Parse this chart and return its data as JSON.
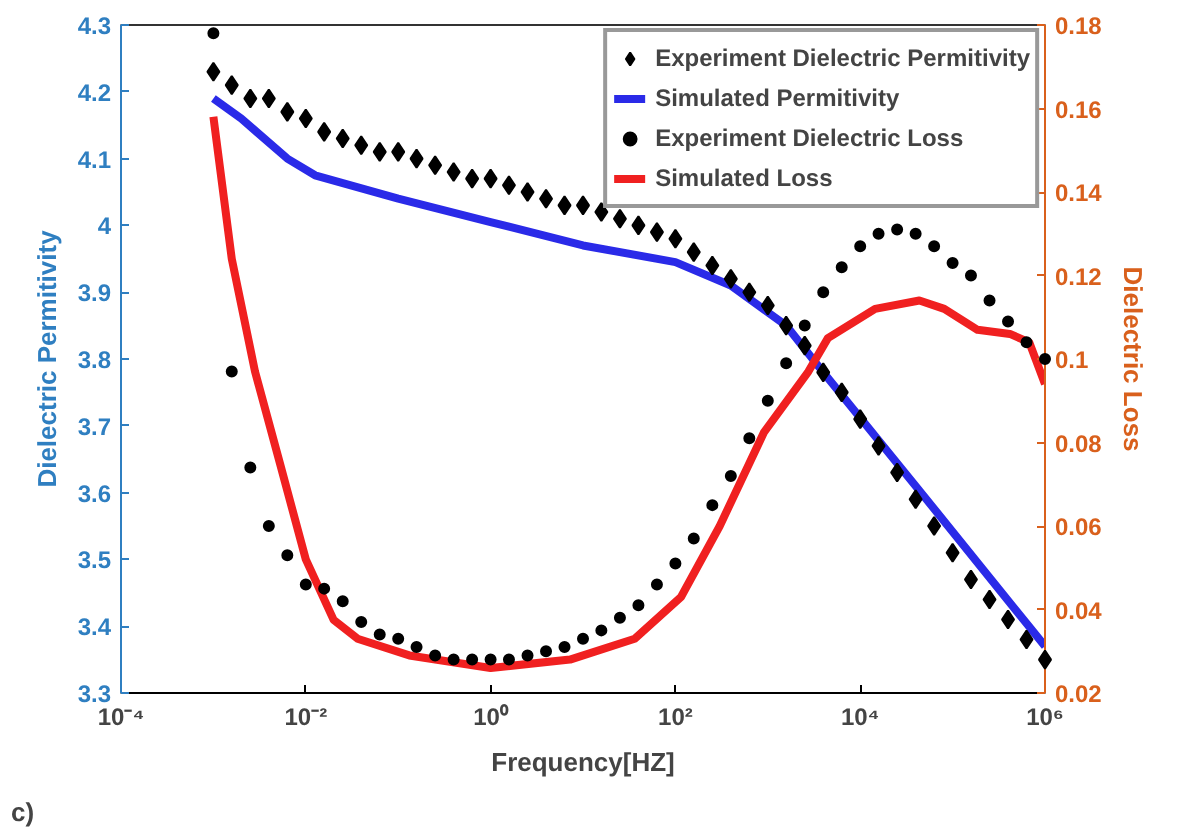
{
  "chart_data": {
    "type": "line",
    "xlabel": "Frequency[HZ]",
    "ylabel": "Dielectric Permitivity",
    "y2label": "Dielectric Loss",
    "log": "x",
    "grid": false,
    "legend": "top right",
    "xlim": [
      0.0001,
      1000000
    ],
    "xticks": [
      {
        "value": 0.0001,
        "label": "10⁻⁴"
      },
      {
        "value": 0.01,
        "label": "10⁻²"
      },
      {
        "value": 1,
        "label": "10⁰"
      },
      {
        "value": 100,
        "label": "10²"
      },
      {
        "value": 10000,
        "label": "10⁴"
      },
      {
        "value": 1000000,
        "label": "10⁶"
      }
    ],
    "ylim": [
      3.3,
      4.3
    ],
    "yticks": [
      3.3,
      3.4,
      3.5,
      3.6,
      3.7,
      3.8,
      3.9,
      {
        "value": 4,
        "label": "4"
      },
      4.1,
      4.2,
      4.3
    ],
    "y2lim": [
      0.02,
      0.18
    ],
    "y2ticks": [
      0.02,
      0.04,
      0.06,
      0.08,
      0.1,
      0.12,
      0.14,
      0.16,
      0.18
    ],
    "x": [
      0.001,
      0.00158,
      0.00251,
      0.00398,
      0.00631,
      0.01,
      0.0158,
      0.0251,
      0.0398,
      0.0631,
      0.1,
      0.158,
      0.251,
      0.398,
      0.631,
      1,
      1.58,
      2.51,
      3.98,
      6.31,
      10,
      15.8,
      25.1,
      39.8,
      63.1,
      100,
      158,
      251,
      398,
      631,
      1000,
      1580,
      2510,
      3980,
      6310,
      10000,
      15800,
      25100,
      39800,
      63100,
      100000,
      158000,
      251000,
      398000,
      631000,
      1000000
    ],
    "annotations": [
      "c)"
    ],
    "series": [
      {
        "name": "Experiment Dielectric Permitivity",
        "type": "scatter",
        "marker": "diamond",
        "color": "#000000",
        "values": [
          4.23,
          4.21,
          4.19,
          4.19,
          4.17,
          4.16,
          4.14,
          4.13,
          4.12,
          4.11,
          4.11,
          4.1,
          4.09,
          4.08,
          4.07,
          4.07,
          4.06,
          4.05,
          4.04,
          4.03,
          4.03,
          4.02,
          4.01,
          4.0,
          3.99,
          3.98,
          3.96,
          3.94,
          3.92,
          3.9,
          3.88,
          3.85,
          3.82,
          3.78,
          3.75,
          3.71,
          3.67,
          3.63,
          3.59,
          3.55,
          3.51,
          3.47,
          3.44,
          3.41,
          3.38,
          3.35
        ]
      },
      {
        "name": "Simulated Permitivity",
        "type": "line",
        "color": "#2a2ae8",
        "x": [
          0.001,
          0.002,
          0.00631,
          0.0126,
          0.1,
          1,
          10,
          100,
          398,
          1580,
          3980,
          39800,
          1000000
        ],
        "values": [
          4.19,
          4.16,
          4.1,
          4.075,
          4.04,
          4.005,
          3.97,
          3.945,
          3.91,
          3.85,
          3.78,
          3.61,
          3.37
        ]
      },
      {
        "name": "Experiment Dielectric Loss",
        "type": "scatter",
        "marker": "circle",
        "color": "#000000",
        "axis": "y2",
        "values": [
          0.178,
          0.097,
          0.074,
          0.06,
          0.053,
          0.046,
          0.045,
          0.042,
          0.037,
          0.034,
          0.033,
          0.031,
          0.029,
          0.028,
          0.028,
          0.028,
          0.028,
          0.029,
          0.03,
          0.031,
          0.033,
          0.035,
          0.038,
          0.041,
          0.046,
          0.051,
          0.057,
          0.065,
          0.072,
          0.081,
          0.09,
          0.099,
          0.108,
          0.116,
          0.122,
          0.127,
          0.13,
          0.131,
          0.13,
          0.127,
          0.123,
          0.12,
          0.114,
          0.109,
          0.104,
          0.1
        ]
      },
      {
        "name": "Simulated Loss",
        "type": "line",
        "color": "#f02020",
        "axis": "y2",
        "x": [
          0.001,
          0.00158,
          0.00282,
          0.00525,
          0.01,
          0.02,
          0.0363,
          0.132,
          1,
          7.24,
          36.3,
          115,
          302,
          912,
          2750,
          4470,
          14500,
          43700,
          81300,
          186000,
          417000,
          676000,
          1000000
        ],
        "values": [
          0.158,
          0.124,
          0.097,
          0.075,
          0.052,
          0.0375,
          0.033,
          0.029,
          0.026,
          0.028,
          0.033,
          0.043,
          0.06,
          0.0825,
          0.097,
          0.105,
          0.112,
          0.114,
          0.112,
          0.107,
          0.106,
          0.104,
          0.094
        ]
      }
    ]
  }
}
